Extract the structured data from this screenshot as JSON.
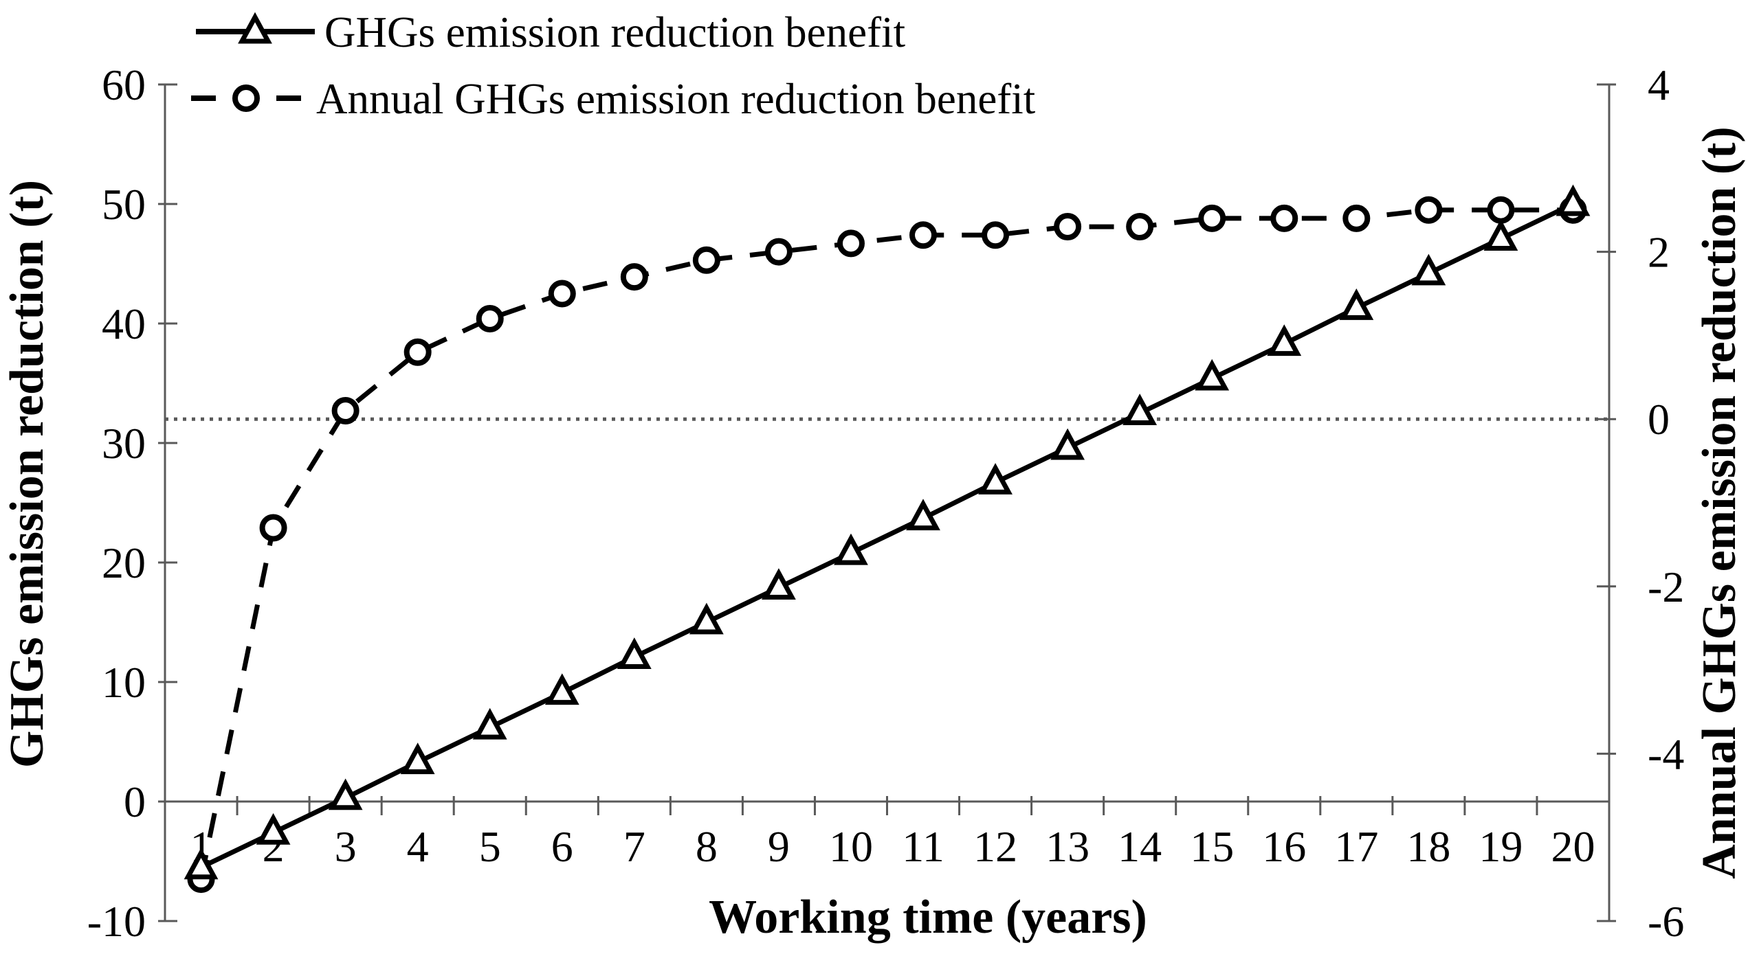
{
  "chart_data": {
    "type": "line",
    "title": "",
    "x_categories": [
      1,
      2,
      3,
      4,
      5,
      6,
      7,
      8,
      9,
      10,
      11,
      12,
      13,
      14,
      15,
      16,
      17,
      18,
      19,
      20
    ],
    "xlabel": "Working time (years)",
    "left_axis": {
      "label": "GHGs emission reduction (t)",
      "min": -10,
      "max": 60,
      "ticks": [
        60,
        50,
        40,
        30,
        20,
        10,
        0,
        -10
      ]
    },
    "right_axis": {
      "label": "Annual GHGs emission reduction (t)",
      "min": -6,
      "max": 4,
      "ticks": [
        4,
        2,
        0,
        -2,
        -4,
        -6
      ]
    },
    "series": [
      {
        "name": "GHGs emission reduction benefit",
        "axis": "left",
        "line": "solid",
        "marker": "triangle",
        "values": [
          -5.5,
          -2.6,
          0.3,
          3.3,
          6.2,
          9.1,
          12.1,
          15.0,
          17.9,
          20.8,
          23.7,
          26.7,
          29.6,
          32.5,
          35.4,
          38.3,
          41.3,
          44.2,
          47.1,
          50.0
        ]
      },
      {
        "name": "Annual GHGs emission reduction benefit",
        "axis": "right",
        "line": "dashed",
        "marker": "circle",
        "values": [
          -5.5,
          -1.3,
          0.1,
          0.8,
          1.2,
          1.5,
          1.7,
          1.9,
          2.0,
          2.1,
          2.2,
          2.2,
          2.3,
          2.3,
          2.4,
          2.4,
          2.4,
          2.5,
          2.5,
          2.5
        ]
      }
    ],
    "reference_line": {
      "axis": "right",
      "value": 0,
      "style": "dotted"
    },
    "legend_position": "top-left",
    "grid": false,
    "colors": {
      "series": "#000000",
      "axis": "#595959",
      "reference": "#595959",
      "background": "#ffffff"
    }
  }
}
